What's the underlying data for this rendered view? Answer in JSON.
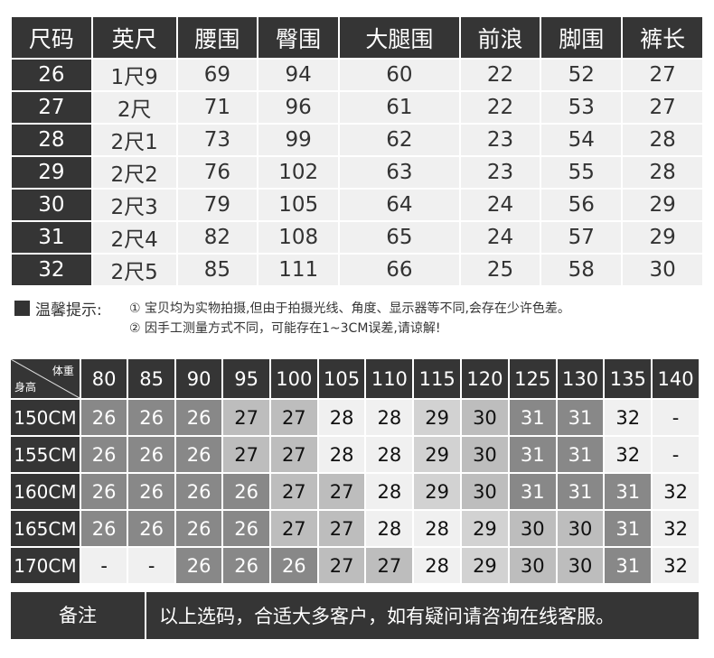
{
  "size_table": {
    "headers": [
      "尺码",
      "英尺",
      "腰围",
      "臀围",
      "大腿围",
      "前浪",
      "脚围",
      "裤长"
    ],
    "rows": [
      [
        "26",
        "1尺9",
        "69",
        "94",
        "60",
        "22",
        "52",
        "27"
      ],
      [
        "27",
        "2尺",
        "71",
        "96",
        "61",
        "22",
        "53",
        "27"
      ],
      [
        "28",
        "2尺1",
        "73",
        "99",
        "62",
        "23",
        "54",
        "28"
      ],
      [
        "29",
        "2尺2",
        "76",
        "102",
        "63",
        "23",
        "55",
        "28"
      ],
      [
        "30",
        "2尺3",
        "79",
        "105",
        "64",
        "24",
        "56",
        "29"
      ],
      [
        "31",
        "2尺4",
        "82",
        "108",
        "65",
        "24",
        "57",
        "29"
      ],
      [
        "32",
        "2尺5",
        "85",
        "111",
        "66",
        "25",
        "58",
        "30"
      ]
    ]
  },
  "notes": {
    "label": "温馨提示:",
    "lines": [
      "① 宝贝均为实物拍摄,但由于拍摄光线、角度、显示器等不同,会存在少许色差。",
      "② 因手工测量方式不同，可能存在1~3CM误差,请谅解!"
    ]
  },
  "fit_table": {
    "corner_top": "体重",
    "corner_bottom": "身高",
    "weights": [
      "80",
      "85",
      "90",
      "95",
      "100",
      "105",
      "110",
      "115",
      "120",
      "125",
      "130",
      "135",
      "140"
    ],
    "rows": [
      {
        "height": "150CM",
        "values": [
          "26",
          "26",
          "26",
          "27",
          "27",
          "28",
          "28",
          "29",
          "30",
          "31",
          "31",
          "32",
          "-"
        ],
        "shades": [
          "D",
          "D",
          "D",
          "M",
          "M",
          "W",
          "W",
          "L",
          "M",
          "D",
          "D",
          "W",
          "W"
        ]
      },
      {
        "height": "155CM",
        "values": [
          "26",
          "26",
          "26",
          "27",
          "27",
          "28",
          "28",
          "29",
          "30",
          "31",
          "31",
          "32",
          "-"
        ],
        "shades": [
          "D",
          "D",
          "D",
          "M",
          "M",
          "W",
          "W",
          "L",
          "M",
          "D",
          "D",
          "W",
          "W"
        ]
      },
      {
        "height": "160CM",
        "values": [
          "26",
          "26",
          "26",
          "26",
          "27",
          "27",
          "28",
          "29",
          "30",
          "31",
          "31",
          "31",
          "32"
        ],
        "shades": [
          "D",
          "D",
          "D",
          "D",
          "M",
          "M",
          "W",
          "L",
          "M",
          "D",
          "D",
          "D",
          "W"
        ]
      },
      {
        "height": "165CM",
        "values": [
          "26",
          "26",
          "26",
          "26",
          "27",
          "27",
          "28",
          "28",
          "29",
          "30",
          "30",
          "31",
          "32"
        ],
        "shades": [
          "D",
          "D",
          "D",
          "D",
          "M",
          "M",
          "W",
          "W",
          "L",
          "M",
          "M",
          "D",
          "W"
        ]
      },
      {
        "height": "170CM",
        "values": [
          "-",
          "-",
          "26",
          "26",
          "26",
          "27",
          "27",
          "28",
          "29",
          "30",
          "30",
          "31",
          "32"
        ],
        "shades": [
          "W",
          "W",
          "D",
          "D",
          "D",
          "M",
          "M",
          "W",
          "L",
          "M",
          "M",
          "D",
          "W"
        ]
      }
    ],
    "shade_colors": {
      "D": "#888888",
      "M": "#bdbdbd",
      "L": "#d2d2d2",
      "W": "#f0f0f0"
    }
  },
  "footer": {
    "label": "备注",
    "text": "以上选码，合适大多客户，如有疑问请咨询在线客服。"
  }
}
